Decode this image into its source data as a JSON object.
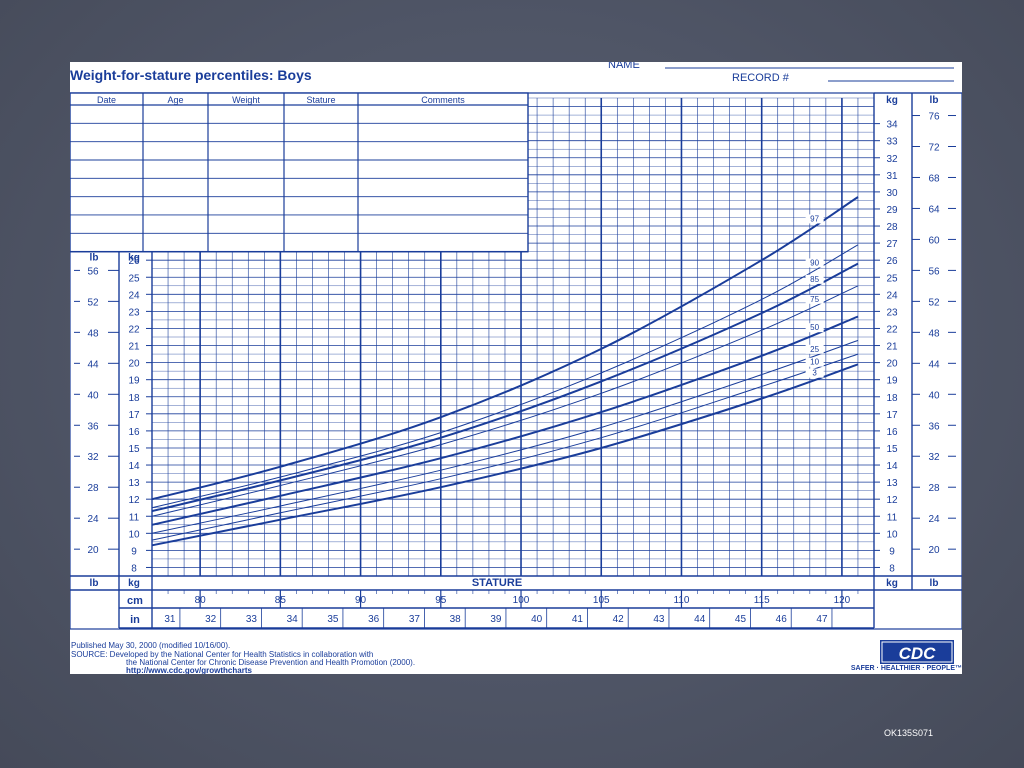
{
  "header": {
    "title": "Weight-for-stature percentiles: Boys",
    "name_label": "NAME",
    "record_label": "RECORD #"
  },
  "record_table": {
    "columns": [
      "Date",
      "Age",
      "Weight",
      "Stature",
      "Comments"
    ]
  },
  "chart_data": {
    "type": "line",
    "xlabel": "STATURE",
    "x_units": [
      "cm",
      "in"
    ],
    "y_units_left": [
      "lb",
      "kg"
    ],
    "y_units_right": [
      "kg",
      "lb"
    ],
    "xlim_cm": [
      77,
      122
    ],
    "ylim_kg": [
      7.5,
      35.5
    ],
    "grid": true,
    "x_ticks_cm": [
      80,
      85,
      90,
      95,
      100,
      105,
      110,
      115,
      120
    ],
    "x_ticks_in": [
      31,
      32,
      33,
      34,
      35,
      36,
      37,
      38,
      39,
      40,
      41,
      42,
      43,
      44,
      45,
      46,
      47
    ],
    "y_ticks_kg_left": [
      8,
      9,
      10,
      11,
      12,
      13,
      14,
      15,
      16,
      17,
      18,
      19,
      20,
      21,
      22,
      23,
      24,
      25,
      26
    ],
    "y_ticks_kg_right": [
      8,
      9,
      10,
      11,
      12,
      13,
      14,
      15,
      16,
      17,
      18,
      19,
      20,
      21,
      22,
      23,
      24,
      25,
      26,
      27,
      28,
      29,
      30,
      31,
      32,
      33,
      34
    ],
    "y_ticks_lb_left": [
      20,
      24,
      28,
      32,
      36,
      40,
      44,
      48,
      52,
      56
    ],
    "y_ticks_lb_right": [
      20,
      24,
      28,
      32,
      36,
      40,
      44,
      48,
      52,
      56,
      60,
      64,
      68,
      72,
      76
    ],
    "series": [
      {
        "name": "97",
        "x": [
          77,
          85,
          95,
          105,
          115,
          121
        ],
        "values": [
          12.0,
          13.9,
          16.8,
          20.8,
          26.0,
          29.7
        ]
      },
      {
        "name": "90",
        "x": [
          77,
          85,
          95,
          105,
          115,
          121
        ],
        "values": [
          11.5,
          13.3,
          15.9,
          19.4,
          23.7,
          26.9
        ]
      },
      {
        "name": "85",
        "x": [
          77,
          85,
          95,
          105,
          115,
          121
        ],
        "values": [
          11.3,
          13.1,
          15.6,
          18.9,
          22.9,
          25.8
        ]
      },
      {
        "name": "75",
        "x": [
          77,
          85,
          95,
          105,
          115,
          121
        ],
        "values": [
          11.0,
          12.8,
          15.2,
          18.2,
          21.9,
          24.5
        ]
      },
      {
        "name": "50",
        "x": [
          77,
          85,
          95,
          105,
          115,
          121
        ],
        "values": [
          10.5,
          12.2,
          14.4,
          17.1,
          20.4,
          22.7
        ]
      },
      {
        "name": "25",
        "x": [
          77,
          85,
          95,
          105,
          115,
          121
        ],
        "values": [
          10.0,
          11.6,
          13.7,
          16.2,
          19.3,
          21.3
        ]
      },
      {
        "name": "10",
        "x": [
          77,
          85,
          95,
          105,
          115,
          121
        ],
        "values": [
          9.6,
          11.2,
          13.2,
          15.6,
          18.6,
          20.5
        ]
      },
      {
        "name": "3",
        "x": [
          77,
          85,
          95,
          105,
          115,
          121
        ],
        "values": [
          9.3,
          10.8,
          12.7,
          15.0,
          17.9,
          19.9
        ]
      }
    ]
  },
  "footer": {
    "published": "Published May 30, 2000 (modified 10/16/00).",
    "source_line1": "SOURCE: Developed by the National Center for Health Statistics in collaboration with",
    "source_line2": "the National Center for Chronic Disease Prevention and Health Promotion (2000).",
    "url": "http://www.cdc.gov/growthcharts",
    "logo_text": "CDC",
    "tagline": "SAFER · HEALTHIER · PEOPLE™",
    "slide_id": "OK135S071"
  },
  "colors": {
    "ink": "#1a3d9a",
    "background": "#4f5566"
  }
}
